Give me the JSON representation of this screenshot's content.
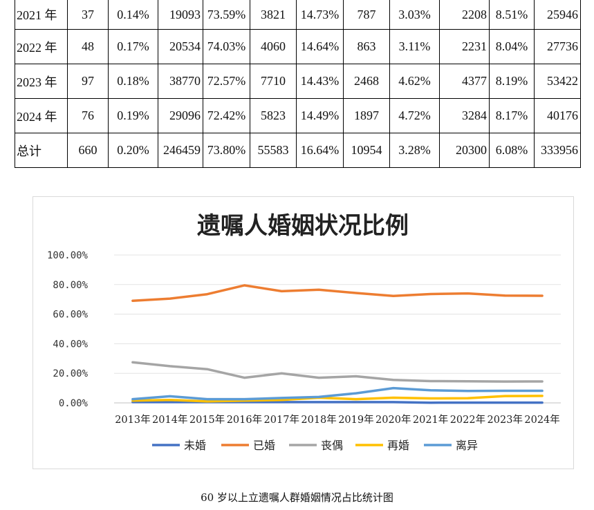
{
  "table": {
    "rows": [
      [
        "2021 年",
        "37",
        "0.14%",
        "19093",
        "73.59%",
        "3821",
        "14.73%",
        "787",
        "3.03%",
        "2208",
        "8.51%",
        "25946"
      ],
      [
        "2022 年",
        "48",
        "0.17%",
        "20534",
        "74.03%",
        "4060",
        "14.64%",
        "863",
        "3.11%",
        "2231",
        "8.04%",
        "27736"
      ],
      [
        "2023 年",
        "97",
        "0.18%",
        "38770",
        "72.57%",
        "7710",
        "14.43%",
        "2468",
        "4.62%",
        "4377",
        "8.19%",
        "53422"
      ],
      [
        "2024 年",
        "76",
        "0.19%",
        "29096",
        "72.42%",
        "5823",
        "14.49%",
        "1897",
        "4.72%",
        "3284",
        "8.17%",
        "40176"
      ],
      [
        "总计",
        "660",
        "0.20%",
        "246459",
        "73.80%",
        "55583",
        "16.64%",
        "10954",
        "3.28%",
        "20300",
        "6.08%",
        "333956"
      ]
    ]
  },
  "chart_data": {
    "type": "line",
    "title": "遗嘱人婚姻状况比例",
    "categories": [
      "2013年",
      "2014年",
      "2015年",
      "2016年",
      "2017年",
      "2018年",
      "2019年",
      "2020年",
      "2021年",
      "2022年",
      "2023年",
      "2024年"
    ],
    "y_ticks": [
      "0.00%",
      "20.00%",
      "40.00%",
      "60.00%",
      "80.00%",
      "100.00%"
    ],
    "ylim": [
      0,
      100
    ],
    "grid": true,
    "legend_position": "bottom",
    "series": [
      {
        "name": "未婚",
        "color": "#4472c4",
        "values": [
          0.5,
          0.5,
          0.5,
          0.5,
          0.5,
          0.5,
          0.5,
          0.5,
          0.14,
          0.17,
          0.18,
          0.19
        ]
      },
      {
        "name": "已婚",
        "color": "#ed7d31",
        "values": [
          69,
          70.5,
          73.5,
          79.5,
          75.5,
          76.5,
          74.3,
          72.3,
          73.59,
          74.03,
          72.57,
          72.42
        ]
      },
      {
        "name": "丧偶",
        "color": "#a5a5a5",
        "values": [
          27.5,
          24.8,
          22.8,
          17,
          20,
          17,
          18,
          15.5,
          14.73,
          14.64,
          14.43,
          14.49
        ]
      },
      {
        "name": "再婚",
        "color": "#ffc000",
        "values": [
          1.5,
          2,
          1,
          1.5,
          2,
          3.5,
          2.5,
          3.5,
          3.03,
          3.11,
          4.62,
          4.72
        ]
      },
      {
        "name": "离异",
        "color": "#5b9bd5",
        "values": [
          2.5,
          4.5,
          2.5,
          2.5,
          3.3,
          4,
          6.5,
          10,
          8.51,
          8.04,
          8.19,
          8.17
        ]
      }
    ]
  },
  "caption": "60 岁以上立遗嘱人群婚姻情况占比统计图"
}
